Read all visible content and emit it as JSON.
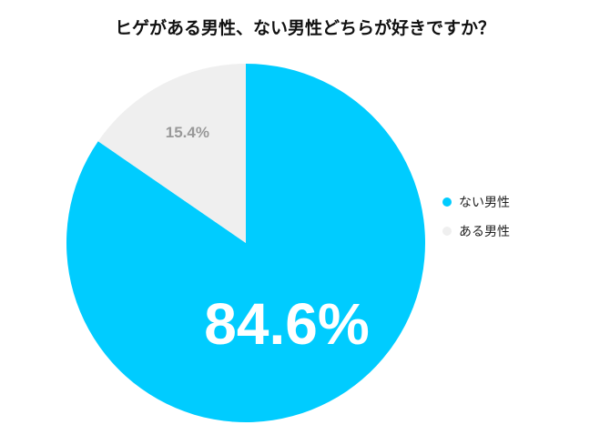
{
  "title": "ヒゲがある男性、ない男性どちらが好きですか？",
  "chart_data": {
    "type": "pie",
    "title": "ヒゲがある男性、ない男性どちらが好きですか？",
    "slices": [
      {
        "label": "ない男性",
        "value": 84.6,
        "display": "84.6%",
        "color": "#00CCFF"
      },
      {
        "label": "ある男性",
        "value": 15.4,
        "display": "15.4%",
        "color": "#EFEFEF"
      }
    ],
    "start_angle": "12 o'clock, clockwise",
    "legend_position": "right"
  },
  "legend": [
    {
      "label": "ない男性",
      "color": "#00CCFF"
    },
    {
      "label": "ある男性",
      "color": "#EFEFEF"
    }
  ]
}
